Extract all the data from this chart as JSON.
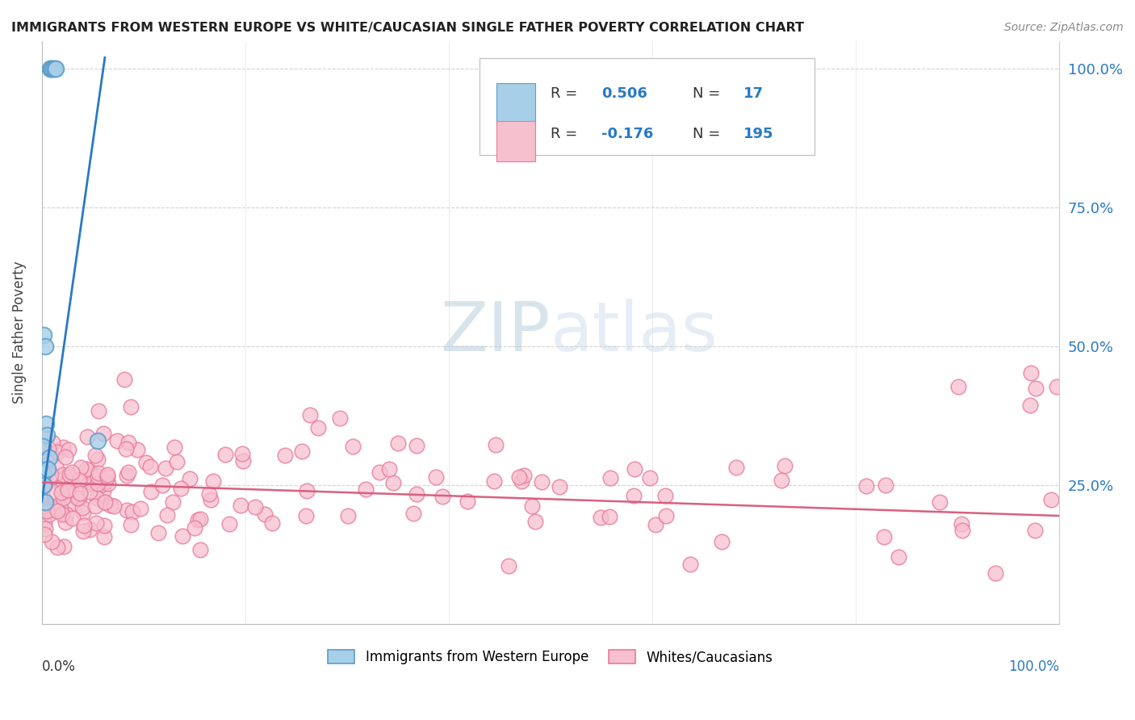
{
  "title": "IMMIGRANTS FROM WESTERN EUROPE VS WHITE/CAUCASIAN SINGLE FATHER POVERTY CORRELATION CHART",
  "source": "Source: ZipAtlas.com",
  "ylabel": "Single Father Poverty",
  "legend_label1": "Immigrants from Western Europe",
  "legend_label2": "Whites/Caucasians",
  "R1": "0.506",
  "N1": "17",
  "R2": "-0.176",
  "N2": "195",
  "blue_color": "#a8cfe8",
  "blue_edge": "#5b9dc9",
  "pink_color": "#f7c0cf",
  "pink_edge": "#e87a9a",
  "line_blue": "#2979c4",
  "line_pink": "#d96080",
  "axis_blue": "#2979c4",
  "watermark_color": "#ccd9e8",
  "background": "#ffffff",
  "grid_color": "#c8c8c8",
  "blue_scatter_x": [
    0.008,
    0.009,
    0.01,
    0.011,
    0.013,
    0.014,
    0.002,
    0.003,
    0.004,
    0.005,
    0.001,
    0.007,
    0.055,
    0.001,
    0.002,
    0.003,
    0.006
  ],
  "blue_scatter_y": [
    1.0,
    1.0,
    1.0,
    1.0,
    1.0,
    1.0,
    0.52,
    0.5,
    0.36,
    0.34,
    0.32,
    0.3,
    0.33,
    0.27,
    0.25,
    0.22,
    0.28
  ],
  "blue_trend_x": [
    0.0,
    0.062
  ],
  "blue_trend_y": [
    0.22,
    1.02
  ],
  "pink_trend_x": [
    0.0,
    1.0
  ],
  "pink_trend_y": [
    0.255,
    0.195
  ],
  "xlim": [
    0.0,
    1.0
  ],
  "ylim": [
    0.0,
    1.05
  ],
  "pink_seed": 123
}
